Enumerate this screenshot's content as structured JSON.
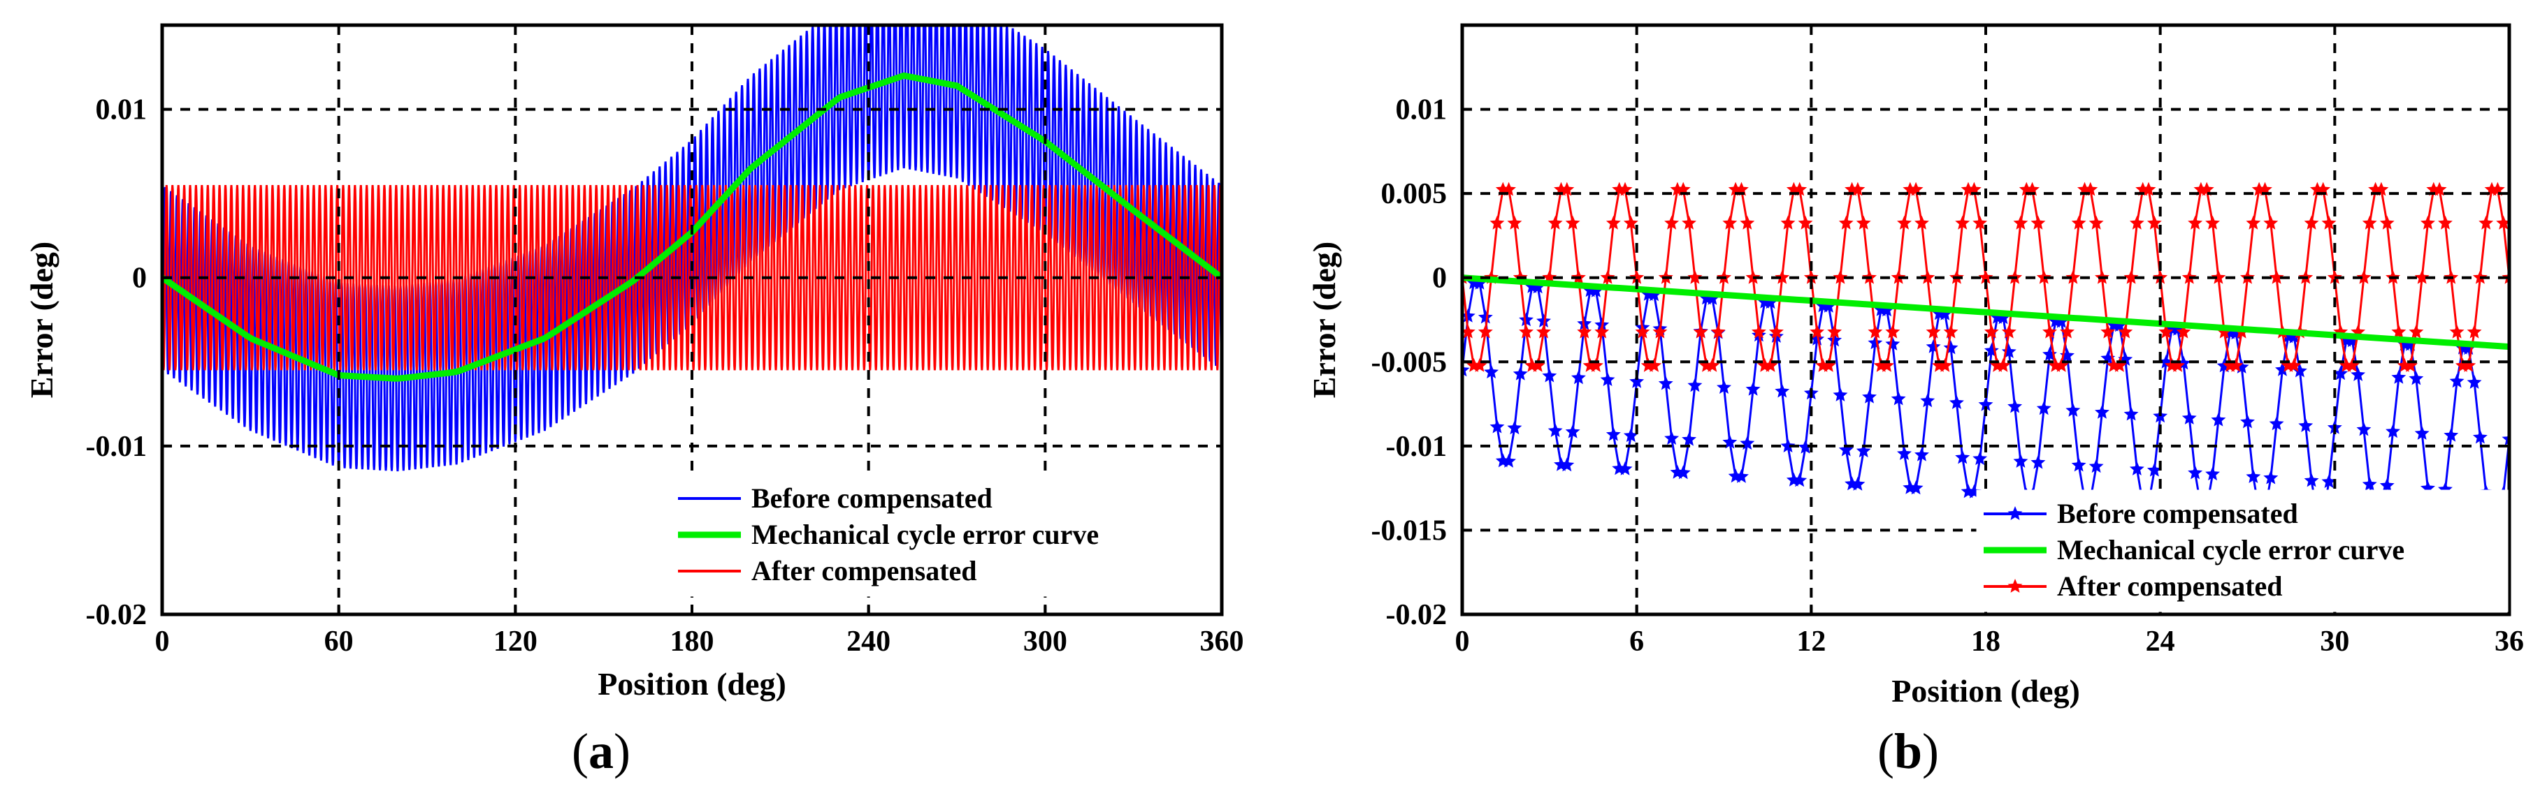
{
  "chart_data": [
    {
      "panel": "(a)",
      "panel_letter": "a",
      "type": "line",
      "xlabel": "Position (deg)",
      "ylabel": "Error (deg)",
      "xlim": [
        0,
        360
      ],
      "ylim": [
        -0.02,
        0.015
      ],
      "xticks": [
        0,
        60,
        120,
        180,
        240,
        300,
        360
      ],
      "xtick_labels": [
        "0",
        "60",
        "120",
        "180",
        "240",
        "300",
        "360"
      ],
      "yticks": [
        -0.02,
        -0.01,
        0,
        0.01
      ],
      "ytick_labels": [
        "-0.02",
        "-0.01",
        "0",
        "0.01"
      ],
      "grid": true,
      "legend_position": "bottom-right",
      "series": [
        {
          "name": "Before compensated",
          "color": "#0000ff",
          "description": "high-frequency oscillation of amplitude ~0.0055 deg (period 2 deg) riding on the mechanical cycle error curve",
          "ripple_amplitude": 0.0055,
          "ripple_period": 2,
          "ripple_phase_offset": 0
        },
        {
          "name": "Mechanical cycle error curve",
          "color": "#00ee00",
          "description": "slow sinusoid, minimum ~-0.006 at ~80 deg, maximum ~0.012 at ~252 deg",
          "x": [
            0,
            30,
            60,
            80,
            100,
            130,
            160,
            180,
            200,
            230,
            252,
            270,
            300,
            330,
            360
          ],
          "y": [
            0,
            -0.0036,
            -0.0058,
            -0.006,
            -0.0056,
            -0.0036,
            -0.0002,
            0.0027,
            0.0065,
            0.0107,
            0.012,
            0.0114,
            0.0081,
            0.004,
            0
          ]
        },
        {
          "name": "After compensated",
          "color": "#ff0000",
          "description": "residual oscillation centred near 0 with amplitude ~0.0055 deg (period 2 deg)",
          "ripple_amplitude": 0.0055,
          "ripple_period": 2,
          "ripple_phase_offset": 0.25
        }
      ]
    },
    {
      "panel": "(b)",
      "panel_letter": "b",
      "type": "line",
      "xlabel": "Position (deg)",
      "ylabel": "Error (deg)",
      "xlim": [
        0,
        36
      ],
      "ylim": [
        -0.02,
        0.015
      ],
      "xticks": [
        0,
        6,
        12,
        18,
        24,
        30,
        36
      ],
      "xtick_labels": [
        "0",
        "6",
        "12",
        "18",
        "24",
        "30",
        "36"
      ],
      "yticks": [
        -0.02,
        -0.015,
        -0.01,
        -0.005,
        0,
        0.005,
        0.01
      ],
      "ytick_labels": [
        "-0.02",
        "-0.015",
        "-0.01",
        "-0.005",
        "0",
        "0.005",
        "0.01"
      ],
      "grid": true,
      "legend_position": "bottom-right",
      "series": [
        {
          "name": "Before compensated",
          "color": "#0000ff",
          "marker": "*",
          "description": "periodic dips of ~-0.011 to -0.013 deg every 2 deg, starting near 0; samples every 0.2 deg",
          "ripple_amplitude": 0.0055,
          "ripple_period": 2,
          "ripple_phase_offset": 0.25,
          "marker_step": 0.2
        },
        {
          "name": "Mechanical cycle error curve",
          "color": "#00ee00",
          "description": "near-linear decline over the first 36 deg",
          "x": [
            0,
            36
          ],
          "y": [
            0,
            -0.0041
          ]
        },
        {
          "name": "After compensated",
          "color": "#ff0000",
          "marker": "*",
          "description": "oscillation between ~+0.0055 and ~-0.0055 deg with period 2 deg; samples every 0.2 deg",
          "ripple_amplitude": 0.0055,
          "ripple_period": 2,
          "ripple_phase_offset": 0.25,
          "marker_step": 0.2
        }
      ]
    }
  ]
}
